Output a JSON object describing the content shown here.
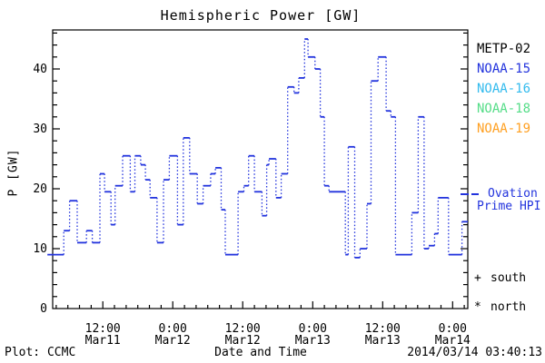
{
  "title": "Hemispheric Power [GW]",
  "legend": {
    "satellites": [
      {
        "label": "METP-02",
        "color": "#000000"
      },
      {
        "label": "NOAA-15",
        "color": "#2233dd"
      },
      {
        "label": "NOAA-16",
        "color": "#33bbee"
      },
      {
        "label": "NOAA-18",
        "color": "#55dd88"
      },
      {
        "label": "NOAA-19",
        "color": "#ffa022"
      }
    ],
    "line_legend": {
      "line1": "Ovation",
      "line2": "Prime HPI",
      "color": "#2233dd",
      "marker": "dashed-line"
    },
    "hemisphere_markers": [
      {
        "symbol": "+",
        "label": "south"
      },
      {
        "symbol": "*",
        "label": "north"
      }
    ]
  },
  "footer": {
    "left": "Plot: CCMC",
    "center": "Date and Time",
    "right": "2014/03/14 03:40:13"
  },
  "chart_data": {
    "type": "line",
    "title": "Hemispheric Power [GW]",
    "xlabel": "Date and Time",
    "ylabel": "P [GW]",
    "ylim": [
      0,
      46.5
    ],
    "y_major_ticks": [
      0,
      10,
      20,
      30,
      40
    ],
    "y_minor_step_gw": 2,
    "x_minor_step_hours": 2,
    "x_epoch": "hours since 2014-03-11 00:00 UT",
    "x_domain_hours": [
      3.4,
      74.6
    ],
    "x_major_ticks": [
      {
        "t": 12,
        "line1": "12:00",
        "line2": "Mar11"
      },
      {
        "t": 24,
        "line1": "0:00",
        "line2": "Mar12"
      },
      {
        "t": 36,
        "line1": "12:00",
        "line2": "Mar12"
      },
      {
        "t": 48,
        "line1": "0:00",
        "line2": "Mar13"
      },
      {
        "t": 60,
        "line1": "12:00",
        "line2": "Mar13"
      },
      {
        "t": 72,
        "line1": "0:00",
        "line2": "Mar14"
      }
    ],
    "grid": false,
    "legend_position": "right",
    "line_style": "stepped; horizontal runs solid, vertical transitions dotted",
    "series": [
      {
        "name": "Ovation Prime HPI",
        "color": "#2233dd",
        "steps": [
          {
            "t0": 2.5,
            "t1": 5.3,
            "gw": 9.0
          },
          {
            "t0": 5.3,
            "t1": 6.3,
            "gw": 13.0
          },
          {
            "t0": 6.3,
            "t1": 7.6,
            "gw": 18.0
          },
          {
            "t0": 7.6,
            "t1": 9.2,
            "gw": 11.0
          },
          {
            "t0": 9.2,
            "t1": 10.2,
            "gw": 13.0
          },
          {
            "t0": 10.2,
            "t1": 11.5,
            "gw": 11.0
          },
          {
            "t0": 11.5,
            "t1": 12.3,
            "gw": 22.5
          },
          {
            "t0": 12.3,
            "t1": 13.4,
            "gw": 19.5
          },
          {
            "t0": 13.4,
            "t1": 14.1,
            "gw": 14.0
          },
          {
            "t0": 14.1,
            "t1": 15.4,
            "gw": 20.5
          },
          {
            "t0": 15.4,
            "t1": 16.7,
            "gw": 25.5
          },
          {
            "t0": 16.7,
            "t1": 17.5,
            "gw": 19.5
          },
          {
            "t0": 17.5,
            "t1": 18.5,
            "gw": 25.5
          },
          {
            "t0": 18.5,
            "t1": 19.3,
            "gw": 24.0
          },
          {
            "t0": 19.3,
            "t1": 20.1,
            "gw": 21.5
          },
          {
            "t0": 20.1,
            "t1": 21.3,
            "gw": 18.5
          },
          {
            "t0": 21.3,
            "t1": 22.4,
            "gw": 11.0
          },
          {
            "t0": 22.4,
            "t1": 23.4,
            "gw": 21.5
          },
          {
            "t0": 23.4,
            "t1": 24.8,
            "gw": 25.5
          },
          {
            "t0": 24.8,
            "t1": 25.8,
            "gw": 14.0
          },
          {
            "t0": 25.8,
            "t1": 26.9,
            "gw": 28.5
          },
          {
            "t0": 26.9,
            "t1": 28.2,
            "gw": 22.5
          },
          {
            "t0": 28.2,
            "t1": 29.2,
            "gw": 17.5
          },
          {
            "t0": 29.2,
            "t1": 30.5,
            "gw": 20.5
          },
          {
            "t0": 30.5,
            "t1": 31.3,
            "gw": 22.5
          },
          {
            "t0": 31.3,
            "t1": 32.3,
            "gw": 23.5
          },
          {
            "t0": 32.3,
            "t1": 33.0,
            "gw": 16.5
          },
          {
            "t0": 33.0,
            "t1": 35.2,
            "gw": 9.0
          },
          {
            "t0": 35.2,
            "t1": 36.2,
            "gw": 19.5
          },
          {
            "t0": 36.2,
            "t1": 37.0,
            "gw": 20.5
          },
          {
            "t0": 37.0,
            "t1": 38.0,
            "gw": 25.5
          },
          {
            "t0": 38.0,
            "t1": 39.3,
            "gw": 19.5
          },
          {
            "t0": 39.3,
            "t1": 40.1,
            "gw": 15.5
          },
          {
            "t0": 40.1,
            "t1": 40.5,
            "gw": 24.0
          },
          {
            "t0": 40.5,
            "t1": 41.7,
            "gw": 25.0
          },
          {
            "t0": 41.7,
            "t1": 42.6,
            "gw": 18.5
          },
          {
            "t0": 42.6,
            "t1": 43.7,
            "gw": 22.5
          },
          {
            "t0": 43.7,
            "t1": 44.8,
            "gw": 37.0
          },
          {
            "t0": 44.8,
            "t1": 45.6,
            "gw": 36.0
          },
          {
            "t0": 45.6,
            "t1": 46.6,
            "gw": 38.5
          },
          {
            "t0": 46.6,
            "t1": 47.2,
            "gw": 45.0
          },
          {
            "t0": 47.2,
            "t1": 48.4,
            "gw": 42.0
          },
          {
            "t0": 48.4,
            "t1": 49.3,
            "gw": 40.0
          },
          {
            "t0": 49.3,
            "t1": 50.0,
            "gw": 32.0
          },
          {
            "t0": 50.0,
            "t1": 50.8,
            "gw": 20.5
          },
          {
            "t0": 50.8,
            "t1": 53.6,
            "gw": 19.5
          },
          {
            "t0": 53.6,
            "t1": 54.1,
            "gw": 9.0
          },
          {
            "t0": 54.1,
            "t1": 55.2,
            "gw": 27.0
          },
          {
            "t0": 55.2,
            "t1": 56.1,
            "gw": 8.5
          },
          {
            "t0": 56.1,
            "t1": 57.3,
            "gw": 10.0
          },
          {
            "t0": 57.3,
            "t1": 58.0,
            "gw": 17.5
          },
          {
            "t0": 58.0,
            "t1": 59.2,
            "gw": 38.0
          },
          {
            "t0": 59.2,
            "t1": 60.6,
            "gw": 42.0
          },
          {
            "t0": 60.6,
            "t1": 61.4,
            "gw": 33.0
          },
          {
            "t0": 61.4,
            "t1": 62.2,
            "gw": 32.0
          },
          {
            "t0": 62.2,
            "t1": 65.0,
            "gw": 9.0
          },
          {
            "t0": 65.0,
            "t1": 66.1,
            "gw": 16.0
          },
          {
            "t0": 66.1,
            "t1": 67.1,
            "gw": 32.0
          },
          {
            "t0": 67.1,
            "t1": 67.9,
            "gw": 10.0
          },
          {
            "t0": 67.9,
            "t1": 68.9,
            "gw": 10.5
          },
          {
            "t0": 68.9,
            "t1": 69.5,
            "gw": 12.5
          },
          {
            "t0": 69.5,
            "t1": 71.3,
            "gw": 18.5
          },
          {
            "t0": 71.3,
            "t1": 73.6,
            "gw": 9.0
          },
          {
            "t0": 73.6,
            "t1": 74.6,
            "gw": 14.5
          }
        ]
      }
    ]
  }
}
